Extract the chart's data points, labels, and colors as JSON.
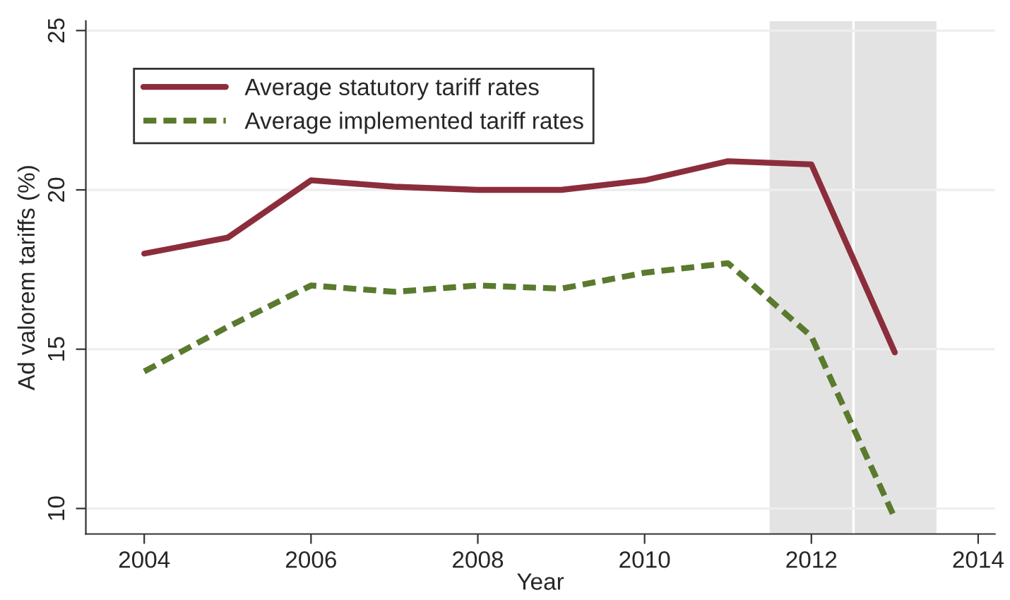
{
  "chart_data": {
    "type": "line",
    "xlabel": "Year",
    "ylabel": "Ad valorem tariffs (%)",
    "x": [
      2004,
      2005,
      2006,
      2007,
      2008,
      2009,
      2010,
      2011,
      2012,
      2013
    ],
    "series": [
      {
        "name": "Average statutory tariff rates",
        "color": "#8c2d3c",
        "line_style": "solid",
        "values": [
          18.0,
          18.5,
          20.3,
          20.1,
          20.0,
          20.0,
          20.3,
          20.9,
          20.8,
          14.9
        ]
      },
      {
        "name": "Average implemented tariff rates",
        "color": "#5a7a2e",
        "line_style": "dashed",
        "values": [
          14.3,
          15.7,
          17.0,
          16.8,
          17.0,
          16.9,
          17.4,
          17.7,
          15.4,
          9.7
        ]
      }
    ],
    "bands": [
      {
        "axis": "x",
        "from": 2011.5,
        "to": 2012.49,
        "color": "#e3e3e3"
      },
      {
        "axis": "x",
        "from": 2012.52,
        "to": 2013.5,
        "color": "#e3e3e3"
      }
    ],
    "xlim": [
      2003.3,
      2014.2
    ],
    "xticks": [
      2004,
      2006,
      2008,
      2010,
      2012,
      2014
    ],
    "ylim": [
      9.2,
      25.3
    ],
    "yticks": [
      10,
      15,
      20,
      25
    ],
    "grid": "y",
    "legend": "top left"
  }
}
